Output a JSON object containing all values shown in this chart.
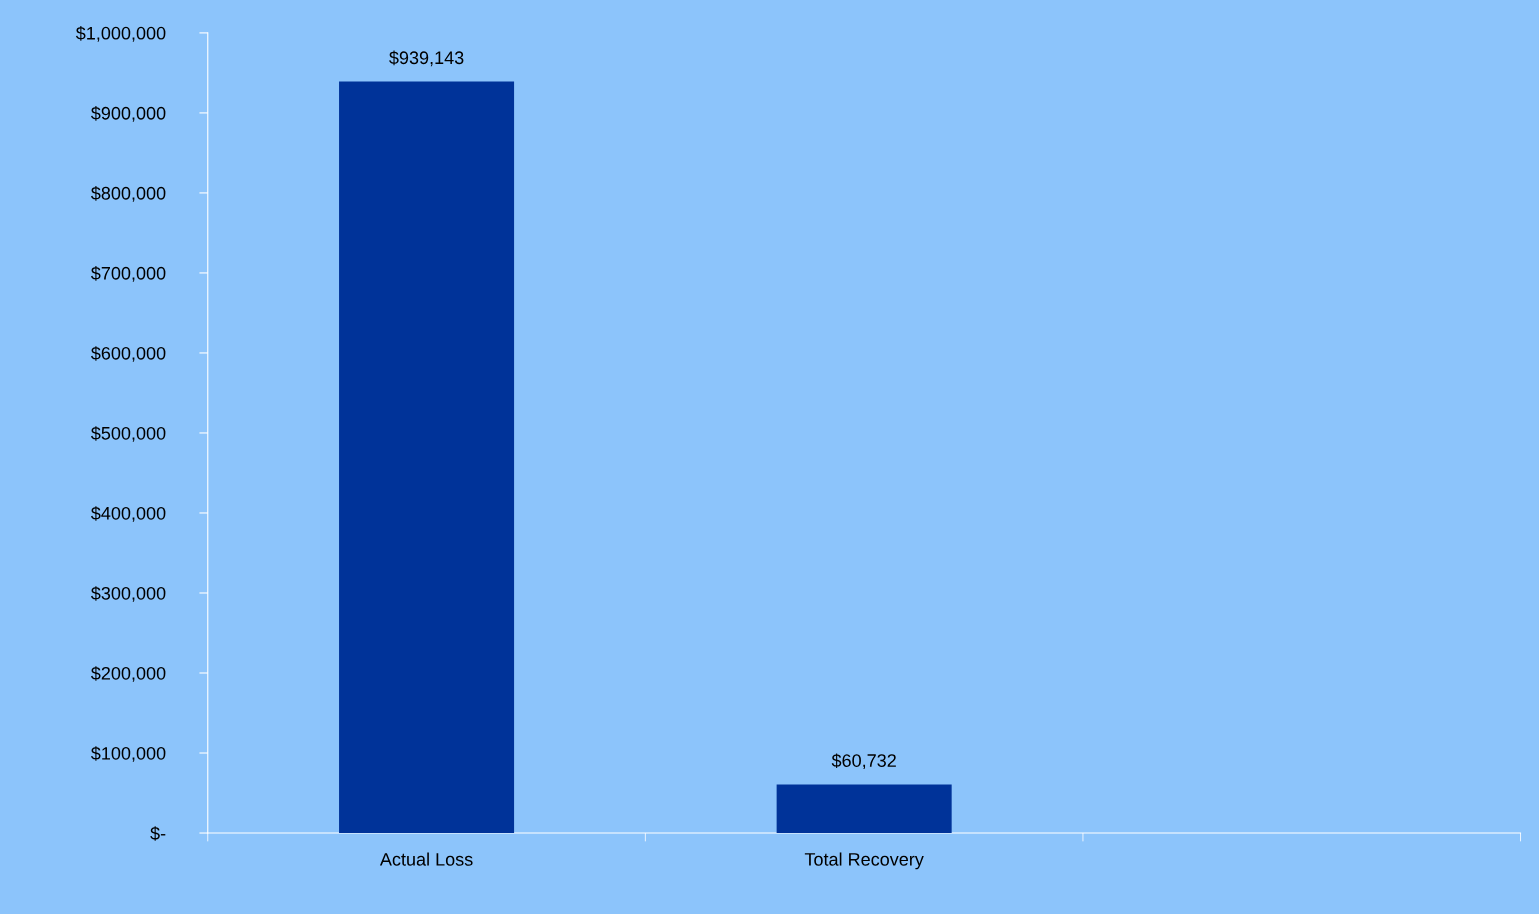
{
  "chart_data": {
    "type": "bar",
    "categories": [
      "Actual Loss",
      "Total Recovery",
      null
    ],
    "values": [
      939143,
      60732,
      null
    ],
    "value_labels": [
      "$939,143",
      "$60,732",
      null
    ],
    "color": "#003399",
    "ylim": [
      0,
      1000000
    ],
    "yticks": [
      {
        "value": 0,
        "label": "$-"
      },
      {
        "value": 100000,
        "label": "$100,000"
      },
      {
        "value": 200000,
        "label": "$200,000"
      },
      {
        "value": 300000,
        "label": "$300,000"
      },
      {
        "value": 400000,
        "label": "$400,000"
      },
      {
        "value": 500000,
        "label": "$500,000"
      },
      {
        "value": 600000,
        "label": "$600,000"
      },
      {
        "value": 700000,
        "label": "$700,000"
      },
      {
        "value": 800000,
        "label": "$800,000"
      },
      {
        "value": 900000,
        "label": "$900,000"
      },
      {
        "value": 1000000,
        "label": "$1,000,000"
      }
    ],
    "grid": false,
    "legend": false
  }
}
